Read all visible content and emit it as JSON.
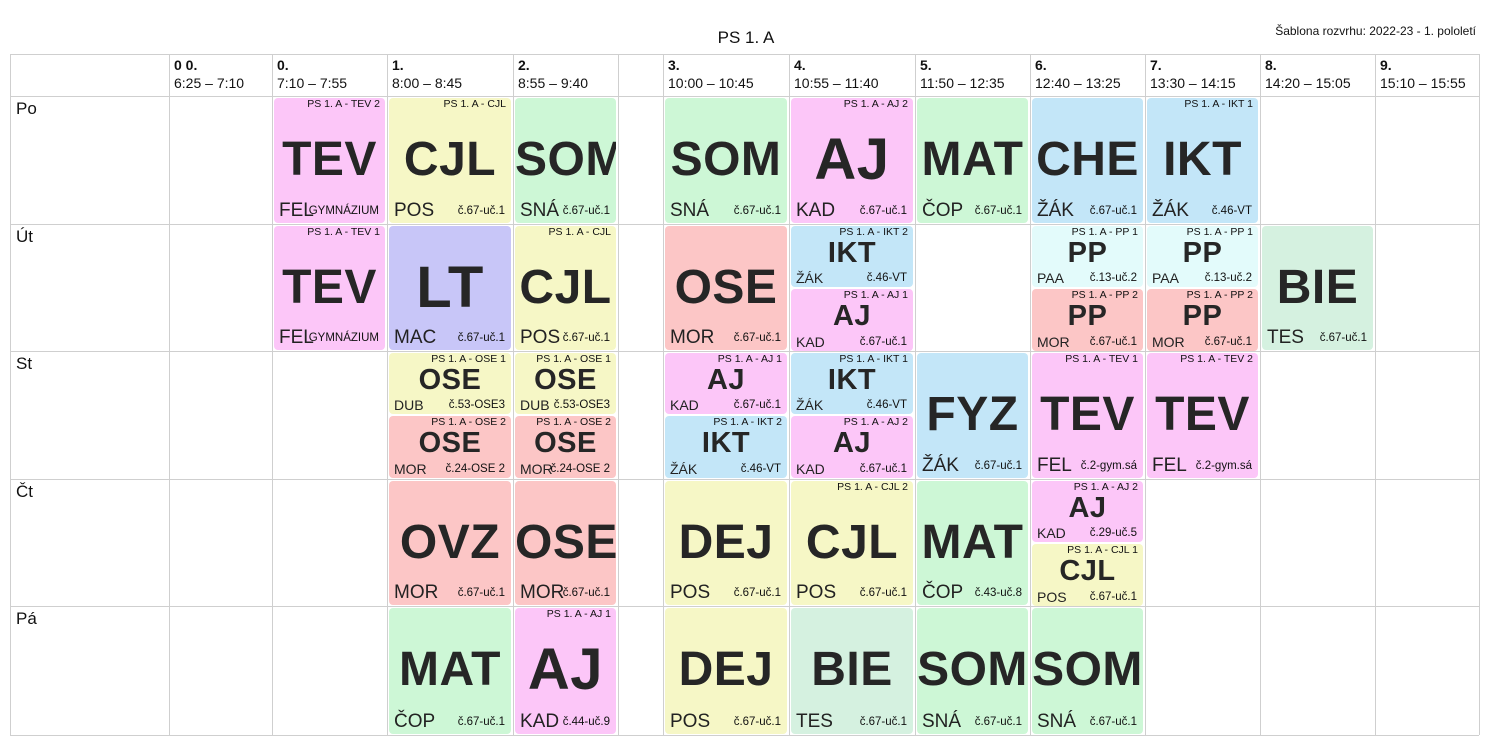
{
  "title": "PS 1. A",
  "template_label": "Šablona rozvrhu: 2022-23 - 1. pololetí",
  "periods": [
    {
      "num": "0 0.",
      "time": "6:25 – 7:10"
    },
    {
      "num": "0.",
      "time": "7:10 – 7:55"
    },
    {
      "num": "1.",
      "time": "8:00 – 8:45"
    },
    {
      "num": "2.",
      "time": "8:55 – 9:40"
    },
    {
      "num": "3.",
      "time": "10:00 – 10:45"
    },
    {
      "num": "4.",
      "time": "10:55 – 11:40"
    },
    {
      "num": "5.",
      "time": "11:50 – 12:35"
    },
    {
      "num": "6.",
      "time": "12:40 – 13:25"
    },
    {
      "num": "7.",
      "time": "13:30 – 14:15"
    },
    {
      "num": "8.",
      "time": "14:20 – 15:05"
    },
    {
      "num": "9.",
      "time": "15:10 – 15:55"
    }
  ],
  "days": [
    "Po",
    "Út",
    "St",
    "Čt",
    "Pá"
  ],
  "lessons": [
    {
      "day": 0,
      "period": 1,
      "slot": "full",
      "group": "PS 1. A - TEV 2",
      "subject": "TEV",
      "teacher": "FEL",
      "room": "GYMNÁZIUM",
      "color": "pink"
    },
    {
      "day": 0,
      "period": 2,
      "slot": "full",
      "group": "PS 1. A - CJL",
      "subject": "CJL",
      "teacher": "POS",
      "room": "č.67-uč.1",
      "color": "yellow"
    },
    {
      "day": 0,
      "period": 3,
      "slot": "full",
      "group": "",
      "subject": "SOM",
      "teacher": "SNÁ",
      "room": "č.67-uč.1",
      "color": "green"
    },
    {
      "day": 0,
      "period": 4,
      "slot": "full",
      "group": "",
      "subject": "SOM",
      "teacher": "SNÁ",
      "room": "č.67-uč.1",
      "color": "green"
    },
    {
      "day": 0,
      "period": 5,
      "slot": "full",
      "group": "PS 1. A - AJ 2",
      "subject": "AJ",
      "teacher": "KAD",
      "room": "č.67-uč.1",
      "color": "pink"
    },
    {
      "day": 0,
      "period": 6,
      "slot": "full",
      "group": "",
      "subject": "MAT",
      "teacher": "ČOP",
      "room": "č.67-uč.1",
      "color": "green"
    },
    {
      "day": 0,
      "period": 7,
      "slot": "full",
      "group": "",
      "subject": "CHE",
      "teacher": "ŽÁK",
      "room": "č.67-uč.1",
      "color": "blue"
    },
    {
      "day": 0,
      "period": 8,
      "slot": "full",
      "group": "PS 1. A - IKT 1",
      "subject": "IKT",
      "teacher": "ŽÁK",
      "room": "č.46-VT",
      "color": "blue"
    },
    {
      "day": 1,
      "period": 1,
      "slot": "full",
      "group": "PS 1. A - TEV 1",
      "subject": "TEV",
      "teacher": "FEL",
      "room": "GYMNÁZIUM",
      "color": "pink"
    },
    {
      "day": 1,
      "period": 2,
      "slot": "full",
      "group": "",
      "subject": "LT",
      "teacher": "MAC",
      "room": "č.67-uč.1",
      "color": "violet"
    },
    {
      "day": 1,
      "period": 3,
      "slot": "full",
      "group": "PS 1. A - CJL",
      "subject": "CJL",
      "teacher": "POS",
      "room": "č.67-uč.1",
      "color": "yellow"
    },
    {
      "day": 1,
      "period": 4,
      "slot": "full",
      "group": "",
      "subject": "OSE",
      "teacher": "MOR",
      "room": "č.67-uč.1",
      "color": "red"
    },
    {
      "day": 1,
      "period": 5,
      "slot": "top",
      "group": "PS 1. A - IKT 2",
      "subject": "IKT",
      "teacher": "ŽÁK",
      "room": "č.46-VT",
      "color": "blue"
    },
    {
      "day": 1,
      "period": 5,
      "slot": "bottom",
      "group": "PS 1. A - AJ 1",
      "subject": "AJ",
      "teacher": "KAD",
      "room": "č.67-uč.1",
      "color": "pink"
    },
    {
      "day": 1,
      "period": 7,
      "slot": "top",
      "group": "PS 1. A - PP 1",
      "subject": "PP",
      "teacher": "PAA",
      "room": "č.13-uč.2",
      "color": "aqua"
    },
    {
      "day": 1,
      "period": 7,
      "slot": "bottom",
      "group": "PS 1. A - PP 2",
      "subject": "PP",
      "teacher": "MOR",
      "room": "č.67-uč.1",
      "color": "red"
    },
    {
      "day": 1,
      "period": 8,
      "slot": "top",
      "group": "PS 1. A - PP 1",
      "subject": "PP",
      "teacher": "PAA",
      "room": "č.13-uč.2",
      "color": "aqua"
    },
    {
      "day": 1,
      "period": 8,
      "slot": "bottom",
      "group": "PS 1. A - PP 2",
      "subject": "PP",
      "teacher": "MOR",
      "room": "č.67-uč.1",
      "color": "red"
    },
    {
      "day": 1,
      "period": 9,
      "slot": "full",
      "group": "",
      "subject": "BIE",
      "teacher": "TES",
      "room": "č.67-uč.1",
      "color": "mint"
    },
    {
      "day": 2,
      "period": 2,
      "slot": "top",
      "group": "PS 1. A - OSE 1",
      "subject": "OSE",
      "teacher": "DUB",
      "room": "č.53-OSE3",
      "color": "yellow"
    },
    {
      "day": 2,
      "period": 2,
      "slot": "bottom",
      "group": "PS 1. A - OSE 2",
      "subject": "OSE",
      "teacher": "MOR",
      "room": "č.24-OSE 2",
      "color": "red"
    },
    {
      "day": 2,
      "period": 3,
      "slot": "top",
      "group": "PS 1. A - OSE 1",
      "subject": "OSE",
      "teacher": "DUB",
      "room": "č.53-OSE3",
      "color": "yellow"
    },
    {
      "day": 2,
      "period": 3,
      "slot": "bottom",
      "group": "PS 1. A - OSE 2",
      "subject": "OSE",
      "teacher": "MOR",
      "room": "č.24-OSE 2",
      "color": "red"
    },
    {
      "day": 2,
      "period": 4,
      "slot": "top",
      "group": "PS 1. A - AJ 1",
      "subject": "AJ",
      "teacher": "KAD",
      "room": "č.67-uč.1",
      "color": "pink"
    },
    {
      "day": 2,
      "period": 4,
      "slot": "bottom",
      "group": "PS 1. A - IKT 2",
      "subject": "IKT",
      "teacher": "ŽÁK",
      "room": "č.46-VT",
      "color": "blue"
    },
    {
      "day": 2,
      "period": 5,
      "slot": "top",
      "group": "PS 1. A - IKT 1",
      "subject": "IKT",
      "teacher": "ŽÁK",
      "room": "č.46-VT",
      "color": "blue"
    },
    {
      "day": 2,
      "period": 5,
      "slot": "bottom",
      "group": "PS 1. A - AJ 2",
      "subject": "AJ",
      "teacher": "KAD",
      "room": "č.67-uč.1",
      "color": "pink"
    },
    {
      "day": 2,
      "period": 6,
      "slot": "full",
      "group": "",
      "subject": "FYZ",
      "teacher": "ŽÁK",
      "room": "č.67-uč.1",
      "color": "blue"
    },
    {
      "day": 2,
      "period": 7,
      "slot": "full",
      "group": "PS 1. A - TEV 1",
      "subject": "TEV",
      "teacher": "FEL",
      "room": "č.2-gym.sá",
      "color": "pink"
    },
    {
      "day": 2,
      "period": 8,
      "slot": "full",
      "group": "PS 1. A - TEV 2",
      "subject": "TEV",
      "teacher": "FEL",
      "room": "č.2-gym.sá",
      "color": "pink"
    },
    {
      "day": 3,
      "period": 2,
      "slot": "full",
      "group": "",
      "subject": "OVZ",
      "teacher": "MOR",
      "room": "č.67-uč.1",
      "color": "red"
    },
    {
      "day": 3,
      "period": 3,
      "slot": "full",
      "group": "",
      "subject": "OSE",
      "teacher": "MOR",
      "room": "č.67-uč.1",
      "color": "red"
    },
    {
      "day": 3,
      "period": 4,
      "slot": "full",
      "group": "",
      "subject": "DEJ",
      "teacher": "POS",
      "room": "č.67-uč.1",
      "color": "yellow"
    },
    {
      "day": 3,
      "period": 5,
      "slot": "full",
      "group": "PS 1. A - CJL 2",
      "subject": "CJL",
      "teacher": "POS",
      "room": "č.67-uč.1",
      "color": "yellow"
    },
    {
      "day": 3,
      "period": 6,
      "slot": "full",
      "group": "",
      "subject": "MAT",
      "teacher": "ČOP",
      "room": "č.43-uč.8",
      "color": "green"
    },
    {
      "day": 3,
      "period": 7,
      "slot": "top",
      "group": "PS 1. A - AJ 2",
      "subject": "AJ",
      "teacher": "KAD",
      "room": "č.29-uč.5",
      "color": "pink"
    },
    {
      "day": 3,
      "period": 7,
      "slot": "bottom",
      "group": "PS 1. A - CJL 1",
      "subject": "CJL",
      "teacher": "POS",
      "room": "č.67-uč.1",
      "color": "yellow"
    },
    {
      "day": 4,
      "period": 2,
      "slot": "full",
      "group": "",
      "subject": "MAT",
      "teacher": "ČOP",
      "room": "č.67-uč.1",
      "color": "green"
    },
    {
      "day": 4,
      "period": 3,
      "slot": "full",
      "group": "PS 1. A - AJ 1",
      "subject": "AJ",
      "teacher": "KAD",
      "room": "č.44-uč.9",
      "color": "pink"
    },
    {
      "day": 4,
      "period": 4,
      "slot": "full",
      "group": "",
      "subject": "DEJ",
      "teacher": "POS",
      "room": "č.67-uč.1",
      "color": "yellow"
    },
    {
      "day": 4,
      "period": 5,
      "slot": "full",
      "group": "",
      "subject": "BIE",
      "teacher": "TES",
      "room": "č.67-uč.1",
      "color": "mint"
    },
    {
      "day": 4,
      "period": 6,
      "slot": "full",
      "group": "",
      "subject": "SOM",
      "teacher": "SNÁ",
      "room": "č.67-uč.1",
      "color": "green"
    },
    {
      "day": 4,
      "period": 7,
      "slot": "full",
      "group": "",
      "subject": "SOM",
      "teacher": "SNÁ",
      "room": "č.67-uč.1",
      "color": "green"
    }
  ]
}
